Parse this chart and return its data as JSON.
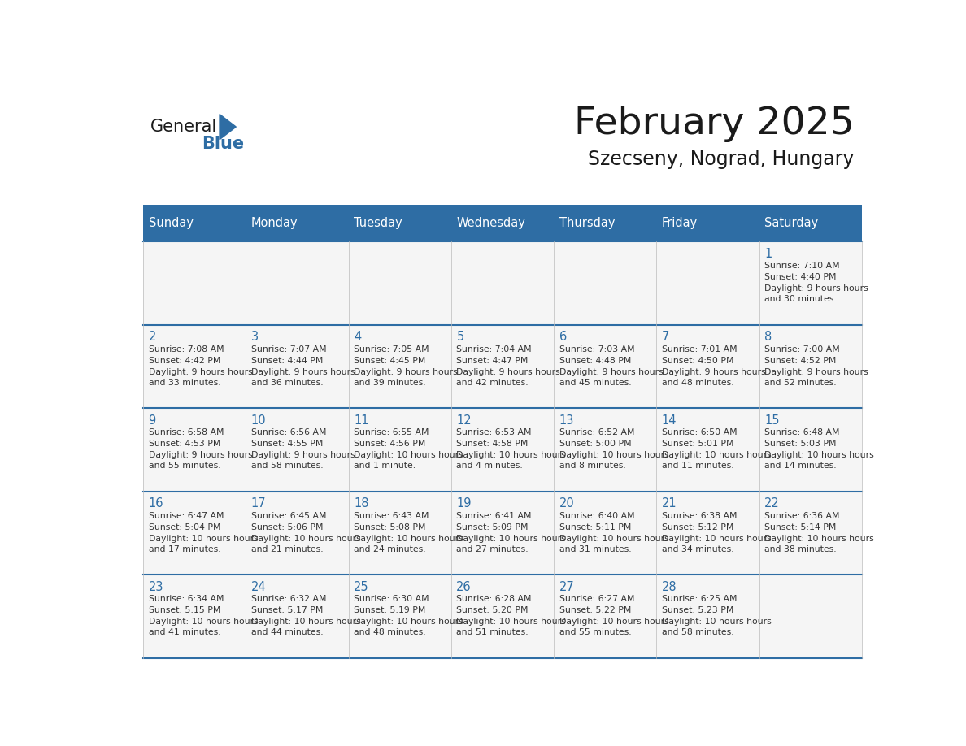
{
  "title": "February 2025",
  "subtitle": "Szecseny, Nograd, Hungary",
  "header_bg": "#2E6DA4",
  "header_text": "#FFFFFF",
  "line_color": "#2E6DA4",
  "day_headers": [
    "Sunday",
    "Monday",
    "Tuesday",
    "Wednesday",
    "Thursday",
    "Friday",
    "Saturday"
  ],
  "days": [
    {
      "day": 1,
      "col": 6,
      "row": 0,
      "sunrise": "7:10 AM",
      "sunset": "4:40 PM",
      "daylight": "9 hours and 30 minutes."
    },
    {
      "day": 2,
      "col": 0,
      "row": 1,
      "sunrise": "7:08 AM",
      "sunset": "4:42 PM",
      "daylight": "9 hours and 33 minutes."
    },
    {
      "day": 3,
      "col": 1,
      "row": 1,
      "sunrise": "7:07 AM",
      "sunset": "4:44 PM",
      "daylight": "9 hours and 36 minutes."
    },
    {
      "day": 4,
      "col": 2,
      "row": 1,
      "sunrise": "7:05 AM",
      "sunset": "4:45 PM",
      "daylight": "9 hours and 39 minutes."
    },
    {
      "day": 5,
      "col": 3,
      "row": 1,
      "sunrise": "7:04 AM",
      "sunset": "4:47 PM",
      "daylight": "9 hours and 42 minutes."
    },
    {
      "day": 6,
      "col": 4,
      "row": 1,
      "sunrise": "7:03 AM",
      "sunset": "4:48 PM",
      "daylight": "9 hours and 45 minutes."
    },
    {
      "day": 7,
      "col": 5,
      "row": 1,
      "sunrise": "7:01 AM",
      "sunset": "4:50 PM",
      "daylight": "9 hours and 48 minutes."
    },
    {
      "day": 8,
      "col": 6,
      "row": 1,
      "sunrise": "7:00 AM",
      "sunset": "4:52 PM",
      "daylight": "9 hours and 52 minutes."
    },
    {
      "day": 9,
      "col": 0,
      "row": 2,
      "sunrise": "6:58 AM",
      "sunset": "4:53 PM",
      "daylight": "9 hours and 55 minutes."
    },
    {
      "day": 10,
      "col": 1,
      "row": 2,
      "sunrise": "6:56 AM",
      "sunset": "4:55 PM",
      "daylight": "9 hours and 58 minutes."
    },
    {
      "day": 11,
      "col": 2,
      "row": 2,
      "sunrise": "6:55 AM",
      "sunset": "4:56 PM",
      "daylight": "10 hours and 1 minute."
    },
    {
      "day": 12,
      "col": 3,
      "row": 2,
      "sunrise": "6:53 AM",
      "sunset": "4:58 PM",
      "daylight": "10 hours and 4 minutes."
    },
    {
      "day": 13,
      "col": 4,
      "row": 2,
      "sunrise": "6:52 AM",
      "sunset": "5:00 PM",
      "daylight": "10 hours and 8 minutes."
    },
    {
      "day": 14,
      "col": 5,
      "row": 2,
      "sunrise": "6:50 AM",
      "sunset": "5:01 PM",
      "daylight": "10 hours and 11 minutes."
    },
    {
      "day": 15,
      "col": 6,
      "row": 2,
      "sunrise": "6:48 AM",
      "sunset": "5:03 PM",
      "daylight": "10 hours and 14 minutes."
    },
    {
      "day": 16,
      "col": 0,
      "row": 3,
      "sunrise": "6:47 AM",
      "sunset": "5:04 PM",
      "daylight": "10 hours and 17 minutes."
    },
    {
      "day": 17,
      "col": 1,
      "row": 3,
      "sunrise": "6:45 AM",
      "sunset": "5:06 PM",
      "daylight": "10 hours and 21 minutes."
    },
    {
      "day": 18,
      "col": 2,
      "row": 3,
      "sunrise": "6:43 AM",
      "sunset": "5:08 PM",
      "daylight": "10 hours and 24 minutes."
    },
    {
      "day": 19,
      "col": 3,
      "row": 3,
      "sunrise": "6:41 AM",
      "sunset": "5:09 PM",
      "daylight": "10 hours and 27 minutes."
    },
    {
      "day": 20,
      "col": 4,
      "row": 3,
      "sunrise": "6:40 AM",
      "sunset": "5:11 PM",
      "daylight": "10 hours and 31 minutes."
    },
    {
      "day": 21,
      "col": 5,
      "row": 3,
      "sunrise": "6:38 AM",
      "sunset": "5:12 PM",
      "daylight": "10 hours and 34 minutes."
    },
    {
      "day": 22,
      "col": 6,
      "row": 3,
      "sunrise": "6:36 AM",
      "sunset": "5:14 PM",
      "daylight": "10 hours and 38 minutes."
    },
    {
      "day": 23,
      "col": 0,
      "row": 4,
      "sunrise": "6:34 AM",
      "sunset": "5:15 PM",
      "daylight": "10 hours and 41 minutes."
    },
    {
      "day": 24,
      "col": 1,
      "row": 4,
      "sunrise": "6:32 AM",
      "sunset": "5:17 PM",
      "daylight": "10 hours and 44 minutes."
    },
    {
      "day": 25,
      "col": 2,
      "row": 4,
      "sunrise": "6:30 AM",
      "sunset": "5:19 PM",
      "daylight": "10 hours and 48 minutes."
    },
    {
      "day": 26,
      "col": 3,
      "row": 4,
      "sunrise": "6:28 AM",
      "sunset": "5:20 PM",
      "daylight": "10 hours and 51 minutes."
    },
    {
      "day": 27,
      "col": 4,
      "row": 4,
      "sunrise": "6:27 AM",
      "sunset": "5:22 PM",
      "daylight": "10 hours and 55 minutes."
    },
    {
      "day": 28,
      "col": 5,
      "row": 4,
      "sunrise": "6:25 AM",
      "sunset": "5:23 PM",
      "daylight": "10 hours and 58 minutes."
    }
  ],
  "num_rows": 5,
  "num_cols": 7,
  "logo_general_color": "#1a1a1a",
  "logo_blue_color": "#2E6DA4",
  "logo_triangle_color": "#2E6DA4",
  "fig_width": 11.88,
  "fig_height": 9.18,
  "dpi": 100
}
